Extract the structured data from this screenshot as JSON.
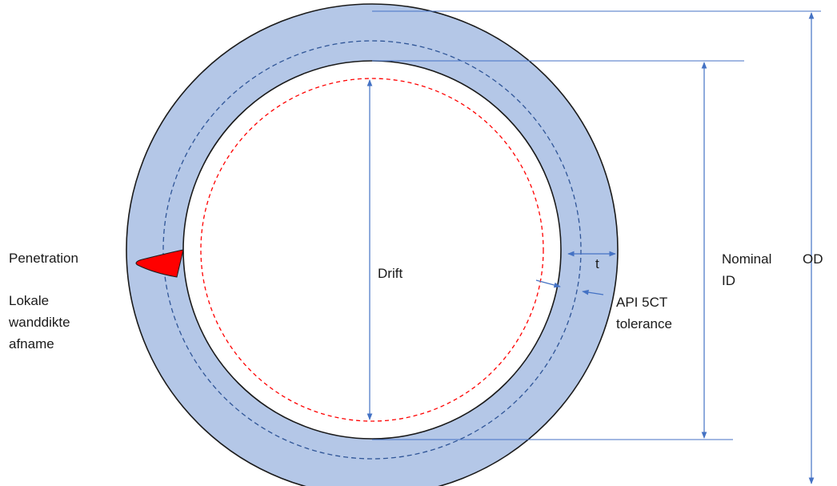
{
  "labels": {
    "penetration": "Penetration",
    "lokale_line1": "Lokale",
    "lokale_line2": "wanddikte",
    "lokale_line3": "afname",
    "drift": "Drift",
    "t": "t",
    "api_line1": "API 5CT",
    "api_line2": "tolerance",
    "nominal_line1": "Nominal",
    "nominal_line2": "ID",
    "od": "OD"
  },
  "colors": {
    "wall_fill": "#b4c7e7",
    "outline": "#1a1a1a",
    "dimension_line": "#4472c4",
    "tolerance_dashed": "#2f5597",
    "drift_dashed": "#ff0000",
    "penetration_fill": "#ff0000"
  }
}
